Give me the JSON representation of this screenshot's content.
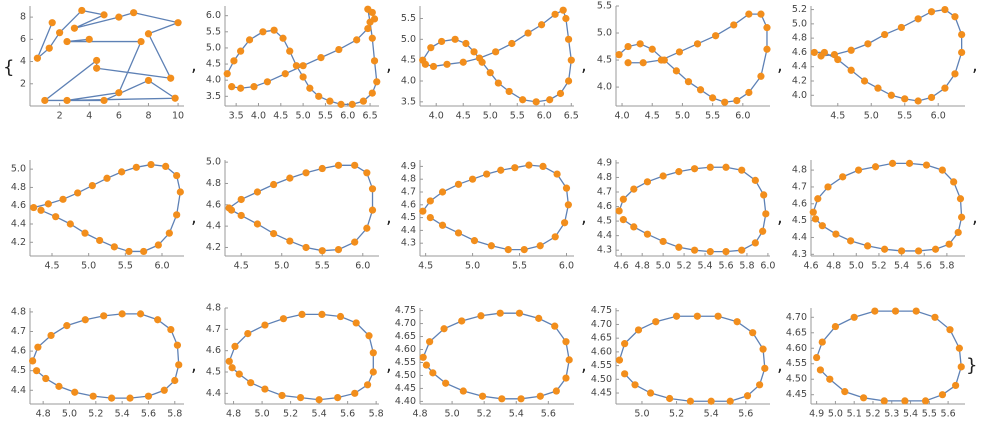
{
  "list_open": "{",
  "separator": ",",
  "list_close": "}",
  "chart_data": [
    {
      "type": "line",
      "markers": true,
      "color": "#5e81b5",
      "marker_color": "#f28e1c",
      "x": [
        1.5,
        0.5,
        1.3,
        2,
        3.5,
        5,
        3,
        6,
        7,
        10,
        8,
        9.5,
        4.5,
        4.5,
        1,
        5,
        8,
        9.8,
        2.5,
        6,
        7.5,
        2.5,
        4
      ],
      "y": [
        7.5,
        4.3,
        5.2,
        6.6,
        8.6,
        8.2,
        7,
        8,
        8.4,
        7.5,
        6.5,
        2.5,
        3.4,
        4.1,
        0.5,
        0.5,
        2.3,
        0.7,
        0.5,
        1.2,
        5.8,
        5.8,
        6
      ],
      "xlim": [
        0,
        10.4
      ],
      "ylim": [
        0,
        9
      ],
      "xticks": [
        2,
        4,
        6,
        8,
        10
      ],
      "yticks": [
        2,
        4,
        6,
        8
      ]
    },
    {
      "type": "line",
      "markers": true,
      "color": "#5e81b5",
      "marker_color": "#f28e1c",
      "x": [
        3.3,
        3.45,
        3.6,
        3.8,
        4.1,
        4.35,
        4.55,
        4.7,
        4.85,
        5.0,
        5.15,
        5.35,
        5.6,
        5.85,
        6.1,
        6.35,
        6.55,
        6.65,
        6.6,
        6.55,
        6.5,
        6.45,
        6.55,
        6.6,
        6.45,
        6.2,
        5.8,
        5.4,
        5.0,
        4.6,
        4.2,
        3.9,
        3.6,
        3.4
      ],
      "y": [
        4.2,
        4.6,
        4.9,
        5.25,
        5.5,
        5.55,
        5.3,
        4.9,
        4.45,
        4.1,
        3.75,
        3.5,
        3.35,
        3.25,
        3.25,
        3.35,
        3.6,
        3.95,
        4.6,
        5.3,
        5.8,
        6.2,
        6.1,
        5.9,
        5.6,
        5.25,
        4.95,
        4.7,
        4.45,
        4.2,
        3.95,
        3.8,
        3.75,
        3.8
      ],
      "xlim": [
        3.25,
        6.7
      ],
      "ylim": [
        3.2,
        6.3
      ],
      "xticks": [
        3.5,
        {
          "value": 4,
          "label": "4.0"
        },
        4.5,
        {
          "value": 5,
          "label": "5.0"
        },
        5.5,
        {
          "value": 6,
          "label": "6.0"
        },
        6.5
      ],
      "yticks": [
        3.5,
        {
          "value": 4,
          "label": "4.0"
        },
        4.5,
        {
          "value": 5,
          "label": "5.0"
        },
        5.5,
        {
          "value": 6,
          "label": "6.0"
        }
      ]
    },
    {
      "type": "line",
      "markers": true,
      "color": "#5e81b5",
      "marker_color": "#f28e1c",
      "x": [
        3.75,
        3.9,
        4.1,
        4.35,
        4.55,
        4.7,
        4.85,
        5.0,
        5.15,
        5.35,
        5.6,
        5.85,
        6.1,
        6.3,
        6.45,
        6.5,
        6.45,
        6.4,
        6.35,
        6.2,
        5.95,
        5.7,
        5.4,
        5.1,
        4.8,
        4.5,
        4.2,
        3.95,
        3.8
      ],
      "y": [
        4.5,
        4.8,
        4.95,
        5.0,
        4.9,
        4.7,
        4.45,
        4.2,
        3.95,
        3.75,
        3.55,
        3.5,
        3.55,
        3.7,
        4.0,
        4.5,
        5.0,
        5.5,
        5.7,
        5.6,
        5.35,
        5.15,
        4.9,
        4.7,
        4.55,
        4.45,
        4.4,
        4.35,
        4.4
      ],
      "xlim": [
        3.7,
        6.55
      ],
      "ylim": [
        3.4,
        5.8
      ],
      "xticks": [
        {
          "value": 4,
          "label": "4.0"
        },
        4.5,
        {
          "value": 5,
          "label": "5.0"
        },
        5.5,
        {
          "value": 6,
          "label": "6.0"
        },
        6.5
      ],
      "yticks": [
        3.5,
        {
          "value": 4,
          "label": "4.0"
        },
        4.5,
        {
          "value": 5,
          "label": "5.0"
        },
        5.5
      ]
    },
    {
      "type": "line",
      "markers": true,
      "color": "#5e81b5",
      "marker_color": "#f28e1c",
      "x": [
        3.95,
        4.1,
        4.3,
        4.5,
        4.7,
        4.9,
        5.1,
        5.3,
        5.5,
        5.7,
        5.9,
        6.1,
        6.3,
        6.4,
        6.4,
        6.3,
        6.1,
        5.85,
        5.55,
        5.25,
        4.95,
        4.65,
        4.35,
        4.1
      ],
      "y": [
        4.6,
        4.75,
        4.8,
        4.7,
        4.5,
        4.3,
        4.1,
        3.95,
        3.8,
        3.72,
        3.75,
        3.9,
        4.2,
        4.7,
        5.1,
        5.35,
        5.35,
        5.15,
        4.95,
        4.8,
        4.65,
        4.5,
        4.45,
        4.45
      ],
      "xlim": [
        3.9,
        6.45
      ],
      "ylim": [
        3.65,
        5.5
      ],
      "xticks": [
        {
          "value": 4,
          "label": "4.0"
        },
        4.5,
        {
          "value": 5,
          "label": "5.0"
        },
        5.5,
        {
          "value": 6,
          "label": "6.0"
        }
      ],
      "yticks": [
        {
          "value": 4,
          "label": "4.0"
        },
        4.5,
        {
          "value": 5,
          "label": "5.0"
        },
        5.5
      ]
    },
    {
      "type": "line",
      "markers": true,
      "color": "#5e81b5",
      "marker_color": "#f28e1c",
      "x": [
        4.15,
        4.3,
        4.5,
        4.7,
        4.9,
        5.1,
        5.3,
        5.5,
        5.7,
        5.9,
        6.1,
        6.25,
        6.35,
        6.35,
        6.25,
        6.1,
        5.9,
        5.7,
        5.45,
        5.2,
        4.95,
        4.7,
        4.45,
        4.25
      ],
      "y": [
        4.6,
        4.6,
        4.5,
        4.35,
        4.2,
        4.1,
        4.0,
        3.95,
        3.92,
        3.97,
        4.1,
        4.3,
        4.6,
        4.85,
        5.1,
        5.2,
        5.17,
        5.07,
        4.95,
        4.85,
        4.72,
        4.63,
        4.57,
        4.55
      ],
      "xlim": [
        4.1,
        6.4
      ],
      "ylim": [
        3.85,
        5.25
      ],
      "xticks": [
        4.5,
        {
          "value": 5,
          "label": "5.0"
        },
        5.5,
        {
          "value": 6,
          "label": "6.0"
        }
      ],
      "yticks": [
        {
          "value": 4,
          "label": "4.0"
        },
        4.2,
        4.4,
        4.6,
        4.8,
        {
          "value": 5,
          "label": "5.0"
        },
        5.2
      ]
    },
    {
      "type": "line",
      "markers": true,
      "color": "#5e81b5",
      "marker_color": "#f28e1c",
      "x": [
        4.25,
        4.45,
        4.65,
        4.85,
        5.05,
        5.25,
        5.45,
        5.65,
        5.85,
        6.05,
        6.2,
        6.25,
        6.2,
        6.1,
        5.95,
        5.75,
        5.55,
        5.35,
        5.15,
        4.95,
        4.75,
        4.55,
        4.35
      ],
      "y": [
        4.58,
        4.62,
        4.67,
        4.74,
        4.82,
        4.9,
        4.97,
        5.02,
        5.05,
        5.03,
        4.93,
        4.75,
        4.5,
        4.3,
        4.17,
        4.1,
        4.1,
        4.15,
        4.22,
        4.3,
        4.4,
        4.48,
        4.55
      ],
      "xlim": [
        4.2,
        6.3
      ],
      "ylim": [
        4.05,
        5.1
      ],
      "xticks": [
        4.5,
        {
          "value": 5,
          "label": "5.0"
        },
        5.5,
        {
          "value": 6,
          "label": "6.0"
        }
      ],
      "yticks": [
        4.2,
        4.4,
        4.6,
        4.8,
        {
          "value": 5,
          "label": "5.0"
        }
      ]
    },
    {
      "type": "line",
      "markers": true,
      "color": "#5e81b5",
      "marker_color": "#f28e1c",
      "x": [
        4.35,
        4.5,
        4.7,
        4.9,
        5.1,
        5.3,
        5.5,
        5.7,
        5.9,
        6.05,
        6.12,
        6.12,
        6.05,
        5.9,
        5.7,
        5.5,
        5.3,
        5.1,
        4.9,
        4.7,
        4.5,
        4.38
      ],
      "y": [
        4.57,
        4.65,
        4.72,
        4.79,
        4.85,
        4.9,
        4.94,
        4.97,
        4.97,
        4.9,
        4.75,
        4.55,
        4.38,
        4.25,
        4.18,
        4.17,
        4.2,
        4.26,
        4.33,
        4.42,
        4.5,
        4.55
      ],
      "xlim": [
        4.3,
        6.2
      ],
      "ylim": [
        4.12,
        5.02
      ],
      "xticks": [
        4.5,
        {
          "value": 5,
          "label": "5.0"
        },
        5.5,
        {
          "value": 6,
          "label": "6.0"
        }
      ],
      "yticks": [
        4.2,
        4.4,
        4.6,
        4.8,
        {
          "value": 5,
          "label": "5.0"
        }
      ]
    },
    {
      "type": "line",
      "markers": true,
      "color": "#5e81b5",
      "marker_color": "#f28e1c",
      "x": [
        4.47,
        4.55,
        4.68,
        4.85,
        5.0,
        5.15,
        5.3,
        5.45,
        5.6,
        5.75,
        5.9,
        6.0,
        6.02,
        5.98,
        5.88,
        5.72,
        5.55,
        5.38,
        5.2,
        5.02,
        4.85,
        4.68,
        4.55
      ],
      "y": [
        4.55,
        4.63,
        4.7,
        4.76,
        4.8,
        4.84,
        4.87,
        4.89,
        4.91,
        4.9,
        4.84,
        4.73,
        4.6,
        4.46,
        4.35,
        4.28,
        4.25,
        4.25,
        4.28,
        4.32,
        4.38,
        4.44,
        4.5
      ],
      "xlim": [
        4.44,
        6.08
      ],
      "ylim": [
        4.2,
        4.95
      ],
      "xticks": [
        4.5,
        {
          "value": 5,
          "label": "5.0"
        },
        5.5,
        {
          "value": 6,
          "label": "6.0"
        }
      ],
      "yticks": [
        4.3,
        4.4,
        4.5,
        4.6,
        4.7,
        4.8,
        4.9
      ]
    },
    {
      "type": "line",
      "markers": true,
      "color": "#5e81b5",
      "marker_color": "#f28e1c",
      "x": [
        4.58,
        4.62,
        4.72,
        4.85,
        5.0,
        5.15,
        5.3,
        5.45,
        5.6,
        5.75,
        5.88,
        5.96,
        5.98,
        5.95,
        5.88,
        5.75,
        5.6,
        5.45,
        5.3,
        5.15,
        5.0,
        4.85,
        4.72,
        4.62
      ],
      "y": [
        4.57,
        4.65,
        4.72,
        4.77,
        4.81,
        4.84,
        4.86,
        4.87,
        4.87,
        4.85,
        4.78,
        4.68,
        4.55,
        4.43,
        4.35,
        4.3,
        4.29,
        4.29,
        4.3,
        4.32,
        4.36,
        4.41,
        4.46,
        4.51
      ],
      "xlim": [
        4.55,
        6.02
      ],
      "ylim": [
        4.26,
        4.92
      ],
      "xticks": [
        4.6,
        4.8,
        {
          "value": 5,
          "label": "5.0"
        },
        5.2,
        5.4,
        5.6,
        5.8,
        {
          "value": 6,
          "label": "6.0"
        }
      ],
      "yticks": [
        4.3,
        4.4,
        4.5,
        4.6,
        4.7,
        4.8,
        4.9
      ]
    },
    {
      "type": "line",
      "markers": true,
      "color": "#5e81b5",
      "marker_color": "#f28e1c",
      "x": [
        4.62,
        4.66,
        4.75,
        4.88,
        5.02,
        5.17,
        5.32,
        5.47,
        5.62,
        5.76,
        5.86,
        5.92,
        5.93,
        5.9,
        5.82,
        5.7,
        5.55,
        5.4,
        5.25,
        5.1,
        4.95,
        4.82,
        4.7,
        4.64
      ],
      "y": [
        4.55,
        4.63,
        4.7,
        4.76,
        4.8,
        4.82,
        4.84,
        4.84,
        4.83,
        4.8,
        4.73,
        4.63,
        4.52,
        4.43,
        4.36,
        4.33,
        4.32,
        4.32,
        4.33,
        4.35,
        4.38,
        4.42,
        4.47,
        4.51
      ],
      "xlim": [
        4.6,
        5.96
      ],
      "ylim": [
        4.29,
        4.86
      ],
      "xticks": [
        4.6,
        4.8,
        {
          "value": 5,
          "label": "5.0"
        },
        5.2,
        5.4,
        5.6,
        5.8
      ],
      "yticks": [
        4.3,
        4.4,
        4.5,
        4.6,
        4.7,
        4.8
      ]
    },
    {
      "type": "line",
      "markers": true,
      "color": "#5e81b5",
      "marker_color": "#f28e1c",
      "x": [
        4.72,
        4.76,
        4.86,
        4.98,
        5.12,
        5.26,
        5.4,
        5.54,
        5.67,
        5.77,
        5.82,
        5.83,
        5.8,
        5.72,
        5.6,
        5.46,
        5.32,
        5.18,
        5.04,
        4.92,
        4.82,
        4.75
      ],
      "y": [
        4.55,
        4.62,
        4.68,
        4.73,
        4.76,
        4.78,
        4.79,
        4.79,
        4.76,
        4.71,
        4.63,
        4.53,
        4.45,
        4.4,
        4.37,
        4.36,
        4.36,
        4.37,
        4.39,
        4.42,
        4.46,
        4.5
      ],
      "xlim": [
        4.7,
        5.87
      ],
      "ylim": [
        4.33,
        4.82
      ],
      "xticks": [
        4.8,
        {
          "value": 5,
          "label": "5.0"
        },
        5.2,
        5.4,
        5.6,
        5.8
      ],
      "yticks": [
        4.4,
        4.5,
        4.6,
        4.7,
        4.8
      ]
    },
    {
      "type": "line",
      "markers": true,
      "color": "#5e81b5",
      "marker_color": "#f28e1c",
      "x": [
        4.77,
        4.81,
        4.9,
        5.02,
        5.15,
        5.28,
        5.42,
        5.55,
        5.66,
        5.75,
        5.78,
        5.78,
        5.74,
        5.65,
        5.53,
        5.4,
        5.27,
        5.14,
        5.02,
        4.92,
        4.84,
        4.79
      ],
      "y": [
        4.55,
        4.62,
        4.68,
        4.72,
        4.75,
        4.77,
        4.77,
        4.76,
        4.73,
        4.67,
        4.59,
        4.5,
        4.44,
        4.4,
        4.38,
        4.37,
        4.38,
        4.39,
        4.42,
        4.45,
        4.49,
        4.52
      ],
      "xlim": [
        4.74,
        5.82
      ],
      "ylim": [
        4.35,
        4.8
      ],
      "xticks": [
        4.8,
        {
          "value": 5,
          "label": "5.0"
        },
        5.2,
        5.4,
        5.6,
        5.8
      ],
      "yticks": [
        4.4,
        4.5,
        4.6,
        4.7,
        4.8
      ]
    },
    {
      "type": "line",
      "markers": true,
      "color": "#5e81b5",
      "marker_color": "#f28e1c",
      "x": [
        4.82,
        4.86,
        4.95,
        5.06,
        5.18,
        5.3,
        5.42,
        5.54,
        5.64,
        5.71,
        5.73,
        5.71,
        5.65,
        5.55,
        5.43,
        5.31,
        5.19,
        5.07,
        4.96,
        4.88,
        4.84
      ],
      "y": [
        4.57,
        4.63,
        4.68,
        4.71,
        4.73,
        4.74,
        4.74,
        4.72,
        4.69,
        4.63,
        4.56,
        4.49,
        4.44,
        4.42,
        4.41,
        4.41,
        4.42,
        4.44,
        4.47,
        4.51,
        4.54
      ],
      "xlim": [
        4.8,
        5.76
      ],
      "ylim": [
        4.39,
        4.76
      ],
      "xticks": [
        4.8,
        {
          "value": 5,
          "label": "5.0"
        },
        5.2,
        5.4,
        5.6
      ],
      "yticks": [
        {
          "value": 4.4,
          "label": "4.40"
        },
        4.45,
        {
          "value": 4.5,
          "label": "4.50"
        },
        4.55,
        {
          "value": 4.6,
          "label": "4.60"
        },
        4.65,
        {
          "value": 4.7,
          "label": "4.70"
        },
        4.75
      ]
    },
    {
      "type": "line",
      "markers": true,
      "color": "#5e81b5",
      "marker_color": "#f28e1c",
      "x": [
        4.87,
        4.9,
        4.98,
        5.08,
        5.2,
        5.32,
        5.44,
        5.55,
        5.64,
        5.7,
        5.71,
        5.68,
        5.61,
        5.51,
        5.4,
        5.28,
        5.16,
        5.05,
        4.96,
        4.9
      ],
      "y": [
        4.57,
        4.63,
        4.68,
        4.71,
        4.73,
        4.73,
        4.73,
        4.71,
        4.67,
        4.61,
        4.54,
        4.48,
        4.44,
        4.42,
        4.42,
        4.42,
        4.43,
        4.45,
        4.48,
        4.52
      ],
      "xlim": [
        4.85,
        5.74
      ],
      "ylim": [
        4.41,
        4.76
      ],
      "xticks": [
        {
          "value": 5,
          "label": "5.0"
        },
        5.2,
        5.4,
        5.6
      ],
      "yticks": [
        4.45,
        {
          "value": 4.5,
          "label": "4.50"
        },
        4.55,
        {
          "value": 4.6,
          "label": "4.60"
        },
        4.65,
        {
          "value": 4.7,
          "label": "4.70"
        },
        4.75
      ]
    },
    {
      "type": "line",
      "markers": true,
      "color": "#5e81b5",
      "marker_color": "#f28e1c",
      "x": [
        4.9,
        4.93,
        5.0,
        5.1,
        5.21,
        5.32,
        5.43,
        5.53,
        5.61,
        5.66,
        5.67,
        5.64,
        5.57,
        5.48,
        5.37,
        5.26,
        5.15,
        5.05,
        4.97,
        4.92
      ],
      "y": [
        4.57,
        4.62,
        4.67,
        4.7,
        4.72,
        4.72,
        4.72,
        4.7,
        4.66,
        4.6,
        4.54,
        4.48,
        4.45,
        4.43,
        4.43,
        4.43,
        4.44,
        4.46,
        4.5,
        4.53
      ],
      "xlim": [
        4.87,
        5.69
      ],
      "ylim": [
        4.42,
        4.73
      ],
      "xticks": [
        4.9,
        {
          "value": 5,
          "label": "5.0"
        },
        5.1,
        5.2,
        5.3,
        5.4,
        5.5,
        5.6
      ],
      "yticks": [
        4.45,
        {
          "value": 4.5,
          "label": "4.50"
        },
        4.55,
        {
          "value": 4.6,
          "label": "4.60"
        },
        4.65,
        {
          "value": 4.7,
          "label": "4.70"
        }
      ]
    }
  ]
}
